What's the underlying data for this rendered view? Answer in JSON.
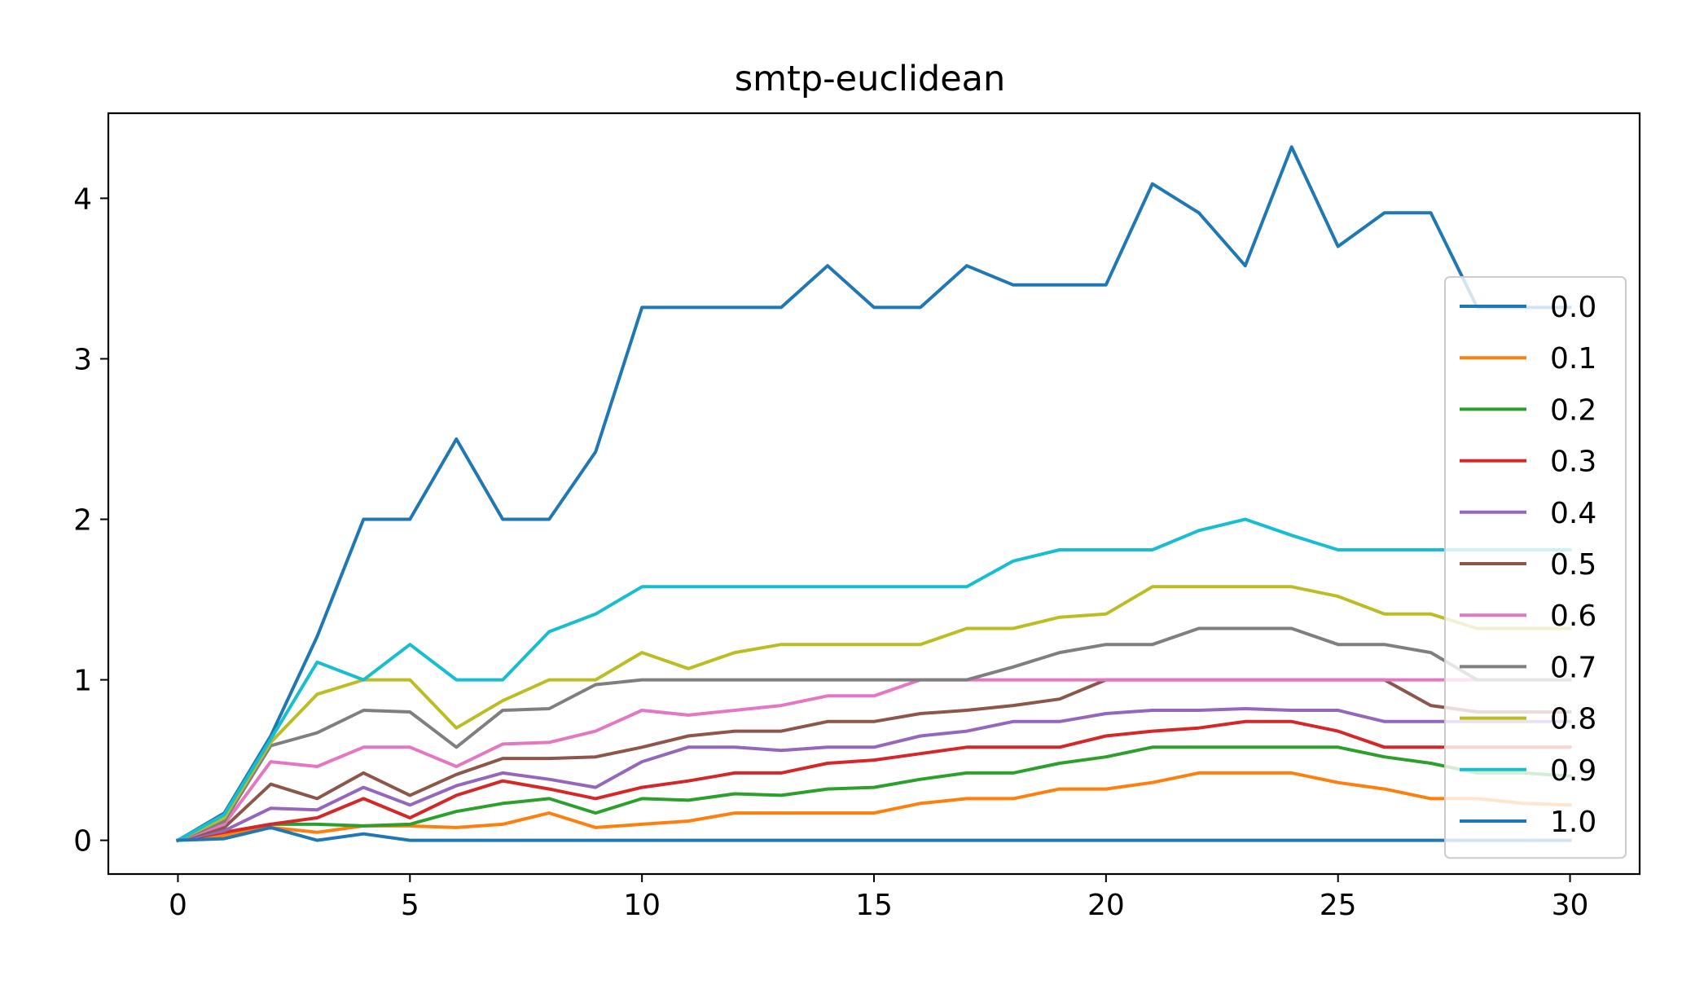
{
  "chart_data": {
    "type": "line",
    "title": "smtp-euclidean",
    "xlabel": "",
    "ylabel": "",
    "xlim": [
      -1.5,
      31.5
    ],
    "ylim": [
      -0.21,
      4.53
    ],
    "xticks": [
      0,
      5,
      10,
      15,
      20,
      25,
      30
    ],
    "yticks": [
      0,
      1,
      2,
      3,
      4
    ],
    "grid": false,
    "legend_position": "right",
    "x": [
      0,
      1,
      2,
      3,
      4,
      5,
      6,
      7,
      8,
      9,
      10,
      11,
      12,
      13,
      14,
      15,
      16,
      17,
      18,
      19,
      20,
      21,
      22,
      23,
      24,
      25,
      26,
      27,
      28,
      29,
      30
    ],
    "series": [
      {
        "name": "0.0",
        "color": "#1f77b4",
        "values": [
          0,
          0.17,
          0.65,
          1.27,
          2.0,
          2.0,
          2.5,
          2.0,
          2.0,
          2.42,
          3.32,
          3.32,
          3.32,
          3.32,
          3.58,
          3.32,
          3.32,
          3.58,
          3.46,
          3.46,
          3.46,
          4.09,
          3.91,
          3.58,
          4.32,
          3.7,
          3.91,
          3.91,
          3.32,
          3.32,
          3.32
        ]
      },
      {
        "name": "0.1",
        "color": "#ff7f0e",
        "values": [
          0,
          0.03,
          0.08,
          0.05,
          0.09,
          0.09,
          0.08,
          0.1,
          0.17,
          0.08,
          0.1,
          0.12,
          0.17,
          0.17,
          0.17,
          0.17,
          0.23,
          0.26,
          0.26,
          0.32,
          0.32,
          0.36,
          0.42,
          0.42,
          0.42,
          0.36,
          0.32,
          0.26,
          0.26,
          0.23,
          0.22
        ]
      },
      {
        "name": "0.2",
        "color": "#2ca02c",
        "values": [
          0,
          0.05,
          0.1,
          0.1,
          0.09,
          0.1,
          0.18,
          0.23,
          0.26,
          0.17,
          0.26,
          0.25,
          0.29,
          0.28,
          0.32,
          0.33,
          0.38,
          0.42,
          0.42,
          0.48,
          0.52,
          0.58,
          0.58,
          0.58,
          0.58,
          0.58,
          0.52,
          0.48,
          0.42,
          0.42,
          0.4
        ]
      },
      {
        "name": "0.3",
        "color": "#d62728",
        "values": [
          0,
          0.05,
          0.1,
          0.14,
          0.26,
          0.14,
          0.28,
          0.37,
          0.32,
          0.26,
          0.33,
          0.37,
          0.42,
          0.42,
          0.48,
          0.5,
          0.54,
          0.58,
          0.58,
          0.58,
          0.65,
          0.68,
          0.7,
          0.74,
          0.74,
          0.68,
          0.58,
          0.58,
          0.58,
          0.58,
          0.58
        ]
      },
      {
        "name": "0.4",
        "color": "#9467bd",
        "values": [
          0,
          0.06,
          0.2,
          0.19,
          0.33,
          0.22,
          0.34,
          0.42,
          0.38,
          0.33,
          0.49,
          0.58,
          0.58,
          0.56,
          0.58,
          0.58,
          0.65,
          0.68,
          0.74,
          0.74,
          0.79,
          0.81,
          0.81,
          0.82,
          0.81,
          0.81,
          0.74,
          0.74,
          0.74,
          0.74,
          0.74
        ]
      },
      {
        "name": "0.5",
        "color": "#8c564b",
        "values": [
          0,
          0.08,
          0.35,
          0.26,
          0.42,
          0.28,
          0.41,
          0.51,
          0.51,
          0.52,
          0.58,
          0.65,
          0.68,
          0.68,
          0.74,
          0.74,
          0.79,
          0.81,
          0.84,
          0.88,
          1.0,
          1.0,
          1.0,
          1.0,
          1.0,
          1.0,
          1.0,
          0.84,
          0.8,
          0.8,
          0.8
        ]
      },
      {
        "name": "0.6",
        "color": "#e377c2",
        "values": [
          0,
          0.1,
          0.49,
          0.46,
          0.58,
          0.58,
          0.46,
          0.6,
          0.61,
          0.68,
          0.81,
          0.78,
          0.81,
          0.84,
          0.9,
          0.9,
          1.0,
          1.0,
          1.0,
          1.0,
          1.0,
          1.0,
          1.0,
          1.0,
          1.0,
          1.0,
          1.0,
          1.0,
          1.0,
          1.0,
          1.0
        ]
      },
      {
        "name": "0.7",
        "color": "#7f7f7f",
        "values": [
          0,
          0.12,
          0.59,
          0.67,
          0.81,
          0.8,
          0.58,
          0.81,
          0.82,
          0.97,
          1.0,
          1.0,
          1.0,
          1.0,
          1.0,
          1.0,
          1.0,
          1.0,
          1.08,
          1.17,
          1.22,
          1.22,
          1.32,
          1.32,
          1.32,
          1.22,
          1.22,
          1.17,
          1.0,
          1.0,
          1.0
        ]
      },
      {
        "name": "0.8",
        "color": "#bcbd22",
        "values": [
          0,
          0.14,
          0.61,
          0.91,
          1.0,
          1.0,
          0.7,
          0.87,
          1.0,
          1.0,
          1.17,
          1.07,
          1.17,
          1.22,
          1.22,
          1.22,
          1.22,
          1.32,
          1.32,
          1.39,
          1.41,
          1.58,
          1.58,
          1.58,
          1.58,
          1.52,
          1.41,
          1.41,
          1.32,
          1.32,
          1.32
        ]
      },
      {
        "name": "0.9",
        "color": "#17becf",
        "values": [
          0,
          0.16,
          0.63,
          1.11,
          1.0,
          1.22,
          1.0,
          1.0,
          1.3,
          1.41,
          1.58,
          1.58,
          1.58,
          1.58,
          1.58,
          1.58,
          1.58,
          1.58,
          1.74,
          1.81,
          1.81,
          1.81,
          1.93,
          2.0,
          1.9,
          1.81,
          1.81,
          1.81,
          1.81,
          1.81,
          1.81
        ]
      },
      {
        "name": "1.0",
        "color": "#1f77b4",
        "values": [
          0,
          0.01,
          0.08,
          0.0,
          0.04,
          0,
          0,
          0,
          0,
          0,
          0,
          0,
          0,
          0,
          0,
          0,
          0,
          0,
          0,
          0,
          0,
          0,
          0,
          0,
          0,
          0,
          0,
          0,
          0,
          0,
          0
        ]
      }
    ]
  }
}
